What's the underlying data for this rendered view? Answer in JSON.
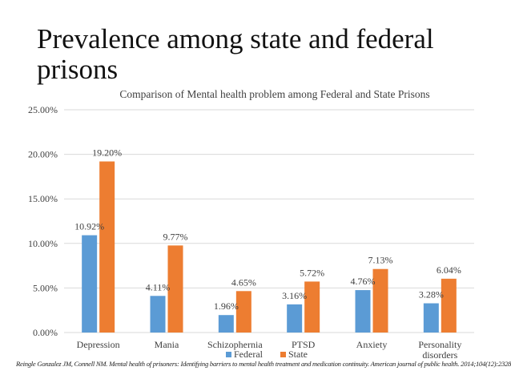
{
  "slide": {
    "title": "Prevalence among state and federal prisons",
    "citation": "Reingle Gonzalez JM, Connell NM. Mental health of prisoners: Identifying barriers to mental health treatment and medication continuity. American journal of public health. 2014;104(12):2328-33."
  },
  "colors": {
    "federal": "#5b9bd5",
    "state": "#ed7d31",
    "grid": "#d9d9d9",
    "text": "#404040"
  },
  "chart_data": {
    "type": "bar",
    "title": "Comparison of Mental health problem among Federal and State Prisons",
    "categories": [
      "Depression",
      "Mania",
      "Schizophernia",
      "PTSD",
      "Anxiety",
      "Personality disorders"
    ],
    "series": [
      {
        "name": "Federal",
        "values": [
          10.92,
          4.11,
          1.96,
          3.16,
          4.76,
          3.28
        ],
        "labels": [
          "10.92%",
          "4.11%",
          "1.96%",
          "3.16%",
          "4.76%",
          "3.28%"
        ]
      },
      {
        "name": "State",
        "values": [
          19.2,
          9.77,
          4.65,
          5.72,
          7.13,
          6.04
        ],
        "labels": [
          "19.20%",
          "9.77%",
          "4.65%",
          "5.72%",
          "7.13%",
          "6.04%"
        ]
      }
    ],
    "ylim": [
      0,
      25
    ],
    "yticks": [
      0,
      5,
      10,
      15,
      20,
      25
    ],
    "ytick_labels": [
      "0.00%",
      "5.00%",
      "10.00%",
      "15.00%",
      "20.00%",
      "25.00%"
    ],
    "grid": true,
    "legend": "bottom"
  }
}
